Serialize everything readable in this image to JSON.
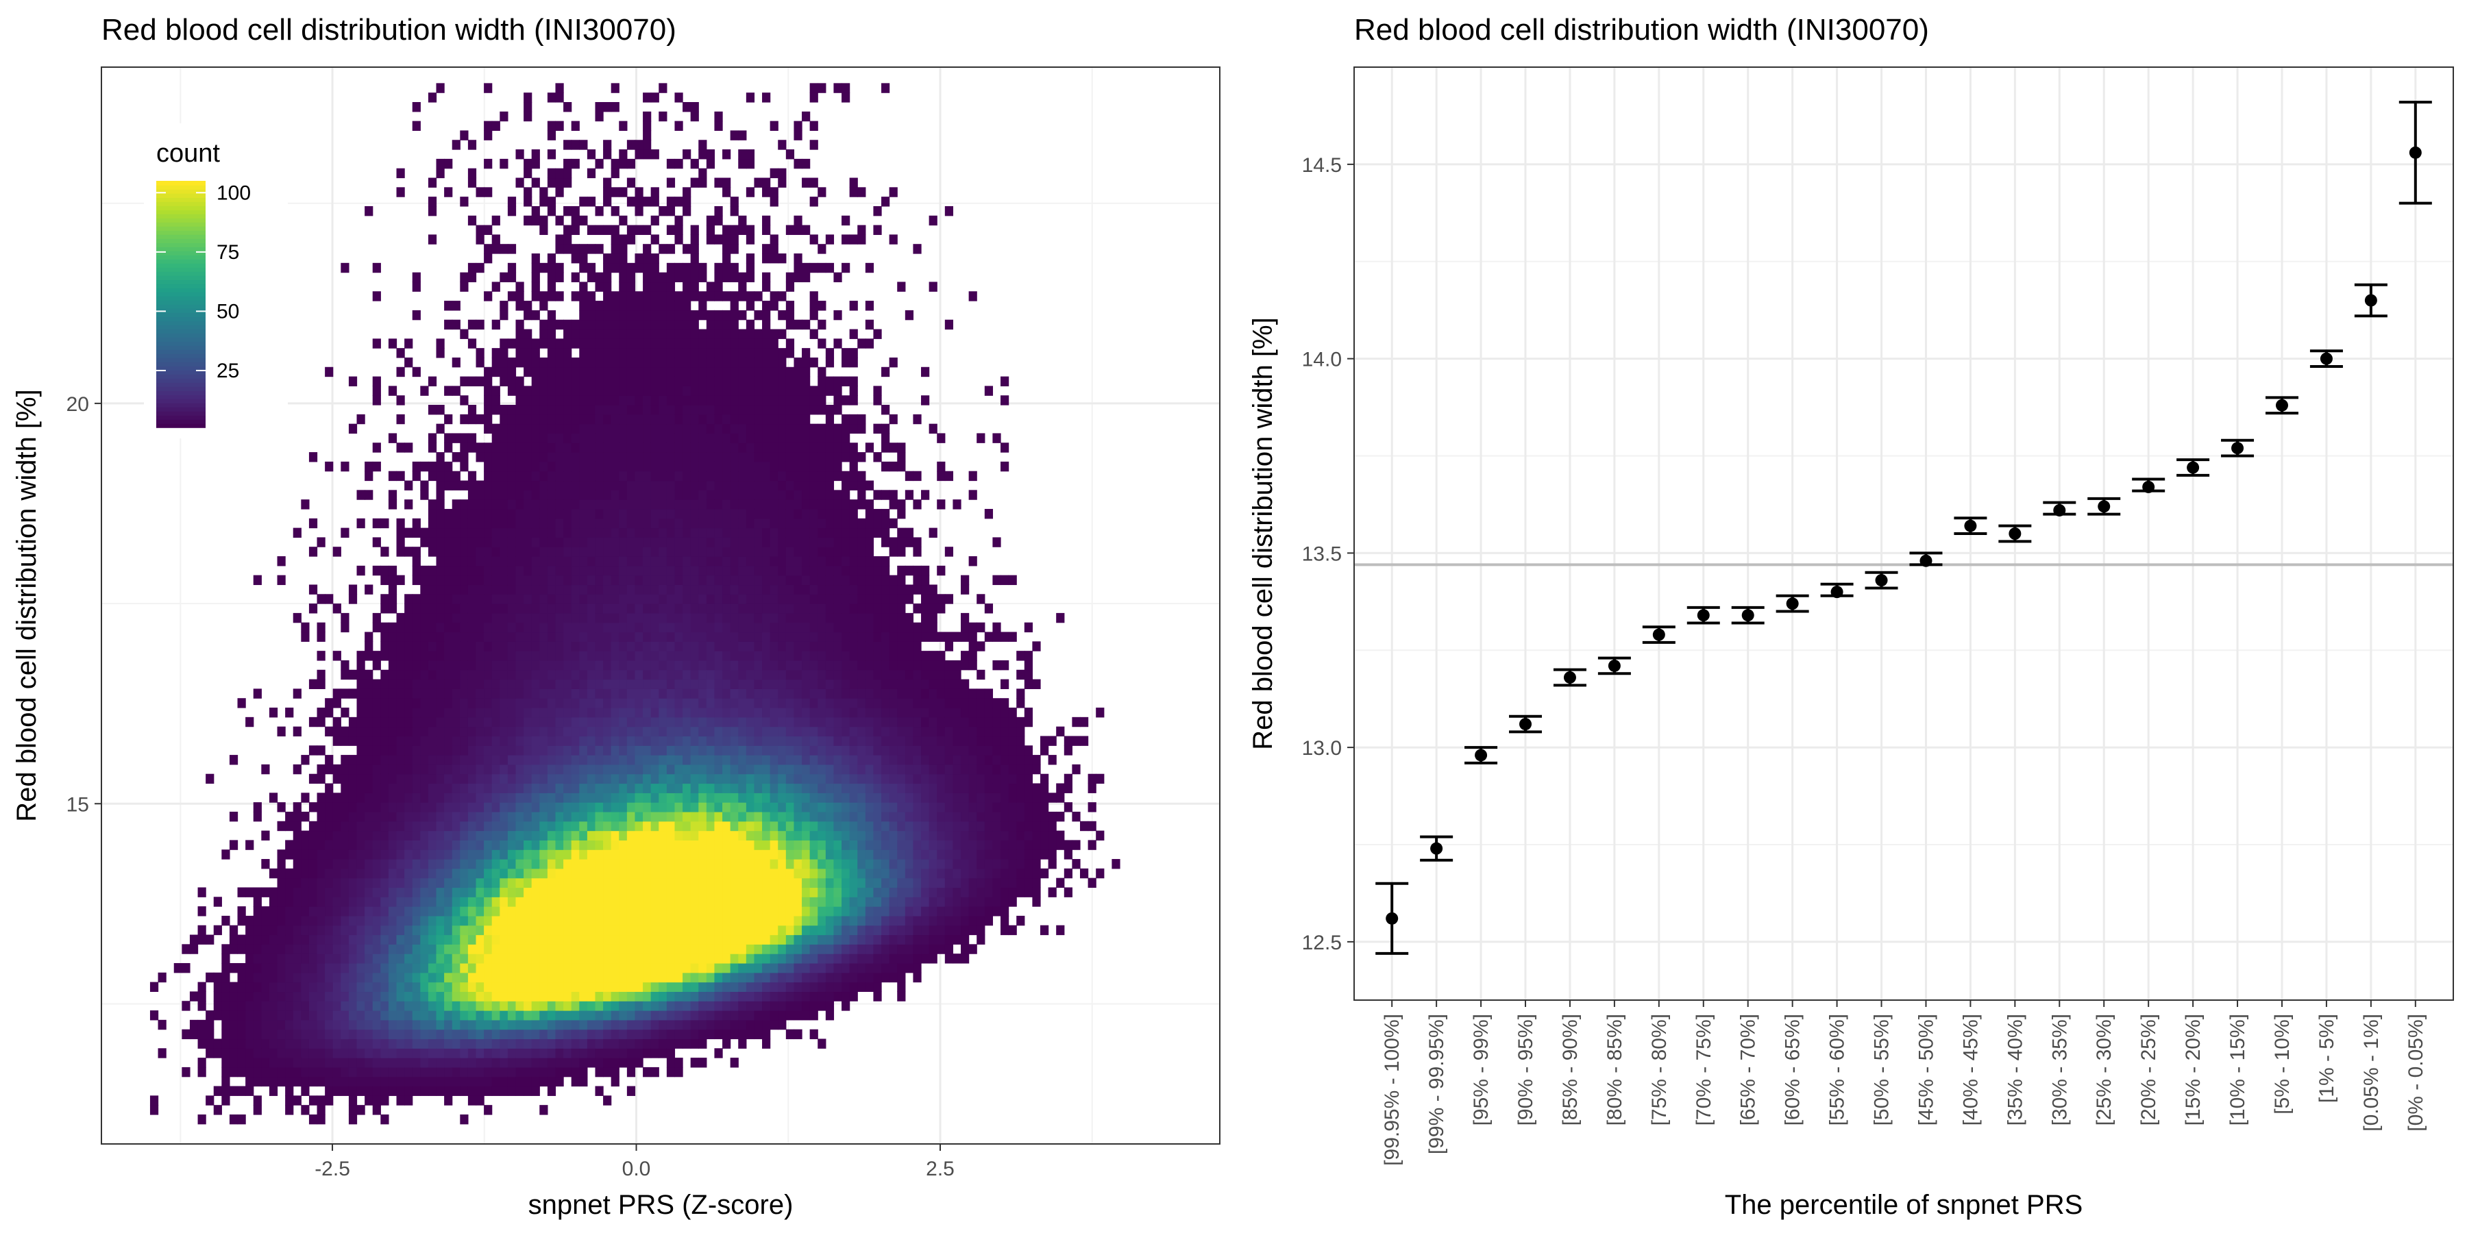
{
  "chart_data": [
    {
      "type": "heatmap",
      "title": "Red blood cell distribution width (INI30070)",
      "xlabel": "snpnet PRS (Z-score)",
      "ylabel": "Red blood cell distribution width [%]",
      "xlim": [
        -4.4,
        4.8
      ],
      "ylim": [
        10.75,
        24.2
      ],
      "x_ticks": [
        -2.5,
        0.0,
        2.5
      ],
      "x_tick_labels": [
        "-2.5",
        "0.0",
        "2.5"
      ],
      "y_ticks": [
        15,
        20
      ],
      "y_tick_labels": [
        "15",
        "20"
      ],
      "grid": true,
      "legend": {
        "title": "count",
        "position": "top-left",
        "ticks": [
          25,
          50,
          75,
          100
        ],
        "tick_labels": [
          "25",
          "50",
          "75",
          "100"
        ],
        "range": [
          1,
          105
        ],
        "colormap": "viridis"
      },
      "density_model": {
        "x_center": 0.0,
        "x_sd": 1.0,
        "y_mode": 13.3,
        "y_slope_per_sd": 0.35,
        "peak_count": 105,
        "bins_x": 130,
        "bins_y": 110
      }
    },
    {
      "type": "errorbar",
      "title": "Red blood cell distribution width (INI30070)",
      "xlabel": "The percentile of snpnet PRS",
      "ylabel": "Red blood cell distribution width [%]",
      "ylim": [
        12.35,
        14.75
      ],
      "y_ticks": [
        12.5,
        13.0,
        13.5,
        14.0,
        14.5
      ],
      "y_tick_labels": [
        "12.5",
        "13.0",
        "13.5",
        "14.0",
        "14.5"
      ],
      "reference_line": 13.47,
      "grid": true,
      "categories": [
        "[99.95% - 100%]",
        "[99% - 99.95%]",
        "[95% - 99%]",
        "[90% - 95%]",
        "[85% - 90%]",
        "[80% - 85%]",
        "[75% - 80%]",
        "[70% - 75%]",
        "[65% - 70%]",
        "[60% - 65%]",
        "[55% - 60%]",
        "[50% - 55%]",
        "[45% - 50%]",
        "[40% - 45%]",
        "[35% - 40%]",
        "[30% - 35%]",
        "[25% - 30%]",
        "[20% - 25%]",
        "[15% - 20%]",
        "[10% - 15%]",
        "[5% - 10%]",
        "[1% - 5%]",
        "[0.05% - 1%]",
        "[0% - 0.05%]"
      ],
      "values": [
        12.56,
        12.74,
        12.98,
        13.06,
        13.18,
        13.21,
        13.29,
        13.34,
        13.34,
        13.37,
        13.4,
        13.43,
        13.48,
        13.57,
        13.55,
        13.61,
        13.62,
        13.67,
        13.72,
        13.77,
        13.88,
        14.0,
        14.15,
        14.53
      ],
      "lower": [
        12.47,
        12.71,
        12.96,
        13.04,
        13.16,
        13.19,
        13.27,
        13.32,
        13.32,
        13.35,
        13.39,
        13.41,
        13.47,
        13.55,
        13.53,
        13.6,
        13.6,
        13.66,
        13.7,
        13.75,
        13.86,
        13.98,
        14.11,
        14.4
      ],
      "upper": [
        12.65,
        12.77,
        13.0,
        13.08,
        13.2,
        13.23,
        13.31,
        13.36,
        13.36,
        13.39,
        13.42,
        13.45,
        13.5,
        13.59,
        13.57,
        13.63,
        13.64,
        13.69,
        13.74,
        13.79,
        13.9,
        14.02,
        14.19,
        14.66
      ]
    }
  ]
}
